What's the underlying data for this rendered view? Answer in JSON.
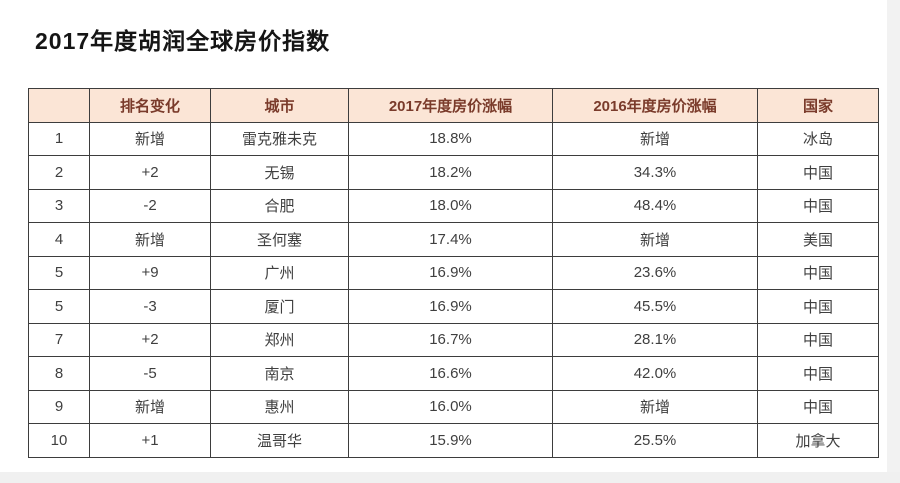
{
  "page": {
    "title": "2017年度胡润全球房价指数"
  },
  "colors": {
    "header_bg": "#fbe5d6",
    "header_text": "#7a3b2b",
    "body_text": "#3f3f3f",
    "border": "#3d3d3d"
  },
  "table": {
    "columns": [
      {
        "key": "rank",
        "label": ""
      },
      {
        "key": "rank-change",
        "label": "排名变化"
      },
      {
        "key": "city",
        "label": "城市"
      },
      {
        "key": "growth-2017",
        "label": "2017年度房价涨幅"
      },
      {
        "key": "growth-2016",
        "label": "2016年度房价涨幅"
      },
      {
        "key": "country",
        "label": "国家"
      }
    ],
    "rows": [
      [
        "1",
        "新增",
        "雷克雅未克",
        "18.8%",
        "新增",
        "冰岛"
      ],
      [
        "2",
        "+2",
        "无锡",
        "18.2%",
        "34.3%",
        "中国"
      ],
      [
        "3",
        "-2",
        "合肥",
        "18.0%",
        "48.4%",
        "中国"
      ],
      [
        "4",
        "新增",
        "圣何塞",
        "17.4%",
        "新增",
        "美国"
      ],
      [
        "5",
        "+9",
        "广州",
        "16.9%",
        "23.6%",
        "中国"
      ],
      [
        "5",
        "-3",
        "厦门",
        "16.9%",
        "45.5%",
        "中国"
      ],
      [
        "7",
        "+2",
        "郑州",
        "16.7%",
        "28.1%",
        "中国"
      ],
      [
        "8",
        "-5",
        "南京",
        "16.6%",
        "42.0%",
        "中国"
      ],
      [
        "9",
        "新增",
        "惠州",
        "16.0%",
        "新增",
        "中国"
      ],
      [
        "10",
        "+1",
        "温哥华",
        "15.9%",
        "25.5%",
        "加拿大"
      ]
    ]
  }
}
